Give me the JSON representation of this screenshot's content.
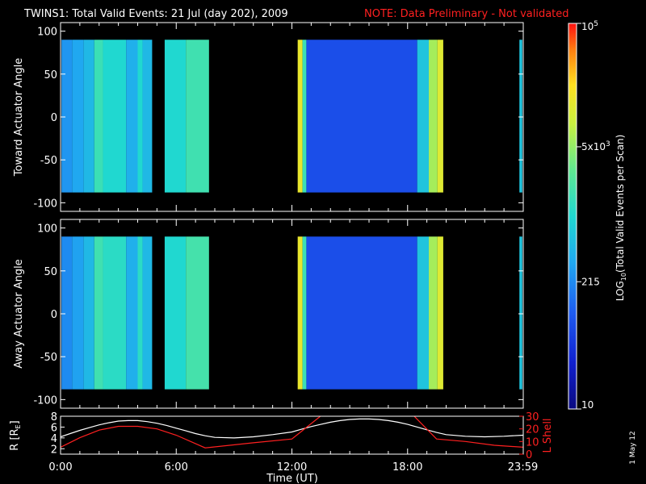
{
  "header": {
    "title": "TWINS1: Total Valid Events: 21 Jul (day 202), 2009",
    "note": "NOTE: Data Preliminary - Not validated",
    "note_color": "#ff2020"
  },
  "side_date": "1 May 12",
  "colorbar": {
    "label_main": "LOG",
    "label_sub": "10",
    "label_rest": "(Total Valid Events per Scan)",
    "ticks": [
      {
        "label": "10",
        "frac": 0.0
      },
      {
        "label": "215",
        "frac": 0.33
      },
      {
        "label": "5x10",
        "sup": "3",
        "frac": 0.68
      },
      {
        "label": "10",
        "sup": "5",
        "frac": 1.0
      }
    ]
  },
  "chart_data": [
    {
      "type": "heatmap",
      "title": "TWINS1: Total Valid Events: 21 Jul (day 202), 2009",
      "ylabel": "Toward Actuator Angle",
      "ylim": [
        -110,
        110
      ],
      "yticks": [
        "100",
        "50",
        "0",
        "-50",
        "-100"
      ],
      "ytick_values": [
        100,
        50,
        0,
        -50,
        -100
      ],
      "xlim_hours": [
        0,
        24
      ],
      "data_angle_range": [
        -88,
        90
      ],
      "segments": [
        {
          "start_h": 0.05,
          "end_h": 0.6,
          "level": 0.35
        },
        {
          "start_h": 0.6,
          "end_h": 1.2,
          "level": 0.38
        },
        {
          "start_h": 1.2,
          "end_h": 1.75,
          "level": 0.42
        },
        {
          "start_h": 1.75,
          "end_h": 2.2,
          "level": 0.55
        },
        {
          "start_h": 2.2,
          "end_h": 3.4,
          "level": 0.5
        },
        {
          "start_h": 3.4,
          "end_h": 4.0,
          "level": 0.4
        },
        {
          "start_h": 4.0,
          "end_h": 4.25,
          "level": 0.5
        },
        {
          "start_h": 4.25,
          "end_h": 4.75,
          "level": 0.42
        },
        {
          "start_h": 5.4,
          "end_h": 6.5,
          "level": 0.5
        },
        {
          "start_h": 6.5,
          "end_h": 7.7,
          "level": 0.56
        },
        {
          "start_h": 12.3,
          "end_h": 12.55,
          "level": 0.8
        },
        {
          "start_h": 12.55,
          "end_h": 12.75,
          "level": 0.55
        },
        {
          "start_h": 12.75,
          "end_h": 18.5,
          "level": 0.22
        },
        {
          "start_h": 18.5,
          "end_h": 19.1,
          "level": 0.45
        },
        {
          "start_h": 19.1,
          "end_h": 19.55,
          "level": 0.7
        },
        {
          "start_h": 19.55,
          "end_h": 19.85,
          "level": 0.78
        },
        {
          "start_h": 23.8,
          "end_h": 23.95,
          "level": 0.45
        }
      ]
    },
    {
      "type": "heatmap",
      "ylabel": "Away Actuator Angle",
      "ylim": [
        -110,
        110
      ],
      "yticks": [
        "100",
        "50",
        "0",
        "-50",
        "-100"
      ],
      "ytick_values": [
        100,
        50,
        0,
        -50,
        -100
      ],
      "xlim_hours": [
        0,
        24
      ],
      "data_angle_range": [
        -88,
        90
      ],
      "segments": [
        {
          "start_h": 0.05,
          "end_h": 0.6,
          "level": 0.33
        },
        {
          "start_h": 0.6,
          "end_h": 1.2,
          "level": 0.37
        },
        {
          "start_h": 1.2,
          "end_h": 1.75,
          "level": 0.42
        },
        {
          "start_h": 1.75,
          "end_h": 2.2,
          "level": 0.56
        },
        {
          "start_h": 2.2,
          "end_h": 3.4,
          "level": 0.52
        },
        {
          "start_h": 3.4,
          "end_h": 4.0,
          "level": 0.4
        },
        {
          "start_h": 4.0,
          "end_h": 4.25,
          "level": 0.52
        },
        {
          "start_h": 4.25,
          "end_h": 4.75,
          "level": 0.42
        },
        {
          "start_h": 5.4,
          "end_h": 6.5,
          "level": 0.5
        },
        {
          "start_h": 6.5,
          "end_h": 7.7,
          "level": 0.57
        },
        {
          "start_h": 12.3,
          "end_h": 12.55,
          "level": 0.8
        },
        {
          "start_h": 12.55,
          "end_h": 12.75,
          "level": 0.55
        },
        {
          "start_h": 12.75,
          "end_h": 18.5,
          "level": 0.22
        },
        {
          "start_h": 18.5,
          "end_h": 19.1,
          "level": 0.45
        },
        {
          "start_h": 19.1,
          "end_h": 19.55,
          "level": 0.7
        },
        {
          "start_h": 19.55,
          "end_h": 19.85,
          "level": 0.78
        },
        {
          "start_h": 23.8,
          "end_h": 23.95,
          "level": 0.45
        }
      ]
    },
    {
      "type": "line",
      "ylabel": "R [R",
      "ylabel_sub": "E",
      "ylabel_close": "]",
      "ylabel_right": "L Shell",
      "ylim_left": [
        1,
        8
      ],
      "yticks_left": [
        "8",
        "6",
        "4",
        "2"
      ],
      "ylim_right": [
        0,
        30
      ],
      "yticks_right": [
        "30",
        "20",
        "10",
        "0"
      ],
      "xlabel": "Time (UT)",
      "xticks": [
        "0:00",
        "6:00",
        "12:00",
        "18:00",
        "23:59"
      ],
      "xtick_hours": [
        0,
        6,
        12,
        18,
        23.98
      ],
      "series": [
        {
          "color": "#ffffff",
          "axis": "left",
          "x": [
            0,
            0.5,
            1,
            1.5,
            2,
            2.5,
            3,
            3.5,
            4,
            4.5,
            5,
            5.5,
            6,
            6.5,
            7,
            7.5,
            8,
            9,
            10,
            11,
            12,
            12.5,
            13,
            13.5,
            14,
            14.5,
            15,
            15.5,
            16,
            16.5,
            17,
            17.5,
            18,
            18.5,
            19,
            19.5,
            20,
            21,
            22,
            23,
            24
          ],
          "values": [
            4.2,
            4.8,
            5.4,
            5.9,
            6.4,
            6.8,
            7.1,
            7.2,
            7.2,
            7.0,
            6.7,
            6.3,
            5.8,
            5.3,
            4.8,
            4.4,
            4.1,
            4.0,
            4.2,
            4.6,
            5.1,
            5.6,
            6.1,
            6.5,
            6.9,
            7.2,
            7.4,
            7.5,
            7.5,
            7.4,
            7.2,
            6.9,
            6.5,
            6.0,
            5.5,
            5.0,
            4.6,
            4.3,
            4.2,
            4.3,
            4.5
          ]
        },
        {
          "color": "#ff2020",
          "axis": "right",
          "x": [
            0,
            1,
            2,
            3,
            4,
            5,
            6,
            7.5,
            10,
            12,
            14.3,
            17.7,
            19.5,
            21,
            22.5,
            24
          ],
          "values": [
            5.5,
            13,
            19,
            22,
            22,
            20,
            15,
            5,
            9,
            12,
            40,
            40,
            12,
            10,
            7,
            5.5
          ]
        }
      ]
    }
  ]
}
